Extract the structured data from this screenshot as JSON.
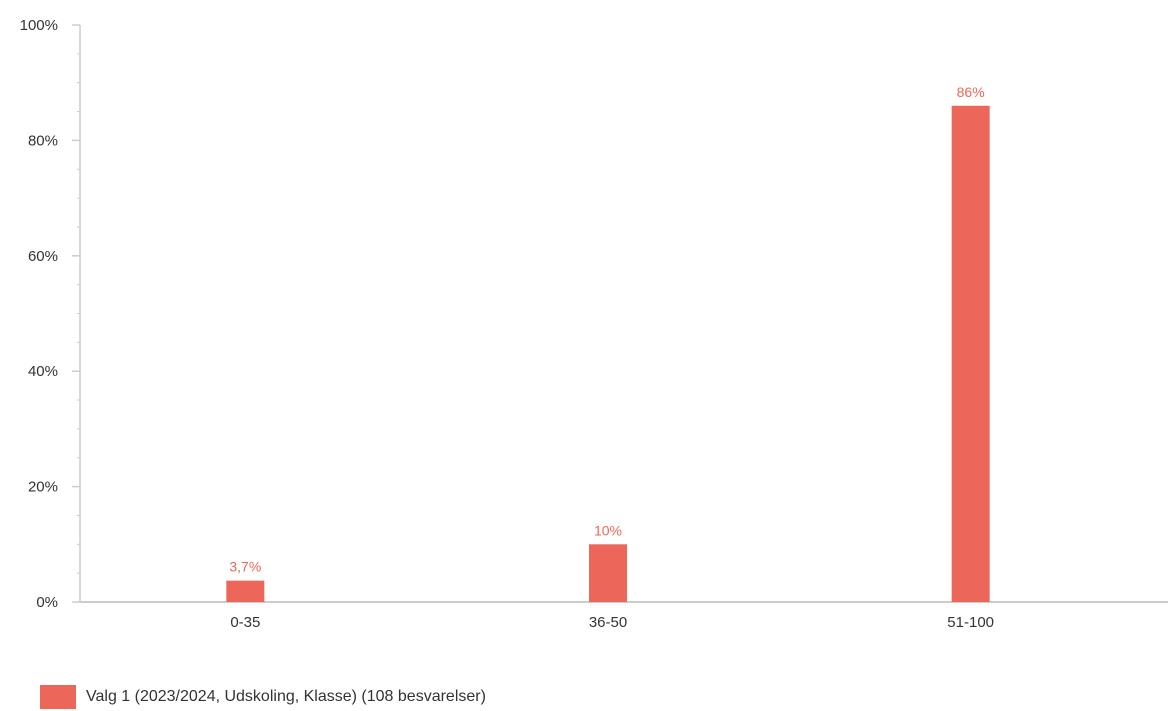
{
  "chart_data": {
    "type": "bar",
    "title": "",
    "xlabel": "",
    "ylabel": "",
    "categories": [
      "0-35",
      "36-50",
      "51-100"
    ],
    "series": [
      {
        "name": "Valg 1 (2023/2024, Udskoling, Klasse) (108 besvarelser)",
        "values": [
          3.7,
          10,
          86
        ],
        "labels": [
          "3,7%",
          "10%",
          "86%"
        ],
        "color": "#ec675a"
      }
    ],
    "ylim": [
      0,
      100
    ],
    "yticks": [
      0,
      20,
      40,
      60,
      80,
      100
    ],
    "ytick_labels": [
      "0%",
      "20%",
      "40%",
      "60%",
      "80%",
      "100%"
    ],
    "grid": false,
    "legend_position": "bottom-left"
  }
}
